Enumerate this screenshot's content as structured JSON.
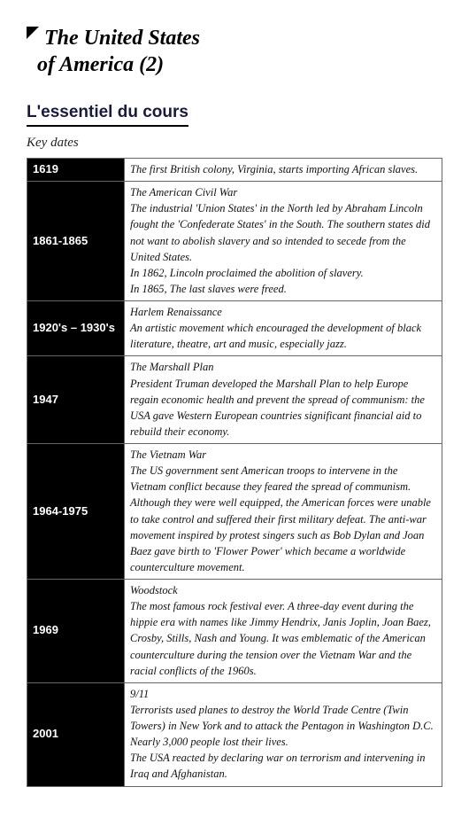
{
  "header": {
    "title_line1": "The United States",
    "title_line2": "of America (2)"
  },
  "section": {
    "title": "L'essentiel du cours",
    "subhead": "Key dates"
  },
  "events": [
    {
      "year": "1619",
      "title": "",
      "body": "The first British colony, Virginia, starts importing African slaves."
    },
    {
      "year": "1861-1865",
      "title": "The American Civil War",
      "body": "The industrial 'Union States' in the North led by Abraham Lincoln fought the 'Confederate States' in the South. The southern states did not want to abolish slavery and so intended to secede from the United States.\nIn 1862, Lincoln proclaimed the abolition of slavery.\nIn 1865, The last slaves were freed."
    },
    {
      "year": "1920's – 1930's",
      "title": "Harlem Renaissance",
      "body": "An artistic movement which encouraged the development of black literature, theatre, art and music, especially jazz."
    },
    {
      "year": "1947",
      "title": "The Marshall Plan",
      "body": "President Truman developed the Marshall Plan to help Europe regain economic health and prevent the spread of communism: the USA gave Western European countries significant financial aid to rebuild their economy."
    },
    {
      "year": "1964-1975",
      "title": "The Vietnam War",
      "body": "The US government sent American troops to intervene in the Vietnam conflict because they feared the spread of communism. Although they were well equipped, the American forces were unable to take control and suffered their first military defeat. The anti-war movement inspired by protest singers such as Bob Dylan and Joan Baez gave birth to 'Flower Power' which became a worldwide counterculture movement."
    },
    {
      "year": "1969",
      "title": "Woodstock",
      "body": "The most famous rock festival ever. A three-day event during the hippie era with names like Jimmy Hendrix, Janis Joplin, Joan Baez, Crosby, Stills, Nash and Young. It was emblematic of the American counterculture during the tension over the Vietnam War and the racial conflicts of the 1960s."
    },
    {
      "year": "2001",
      "title": "9/11",
      "body": "Terrorists used planes to destroy the World Trade Centre (Twin Towers) in New York and to attack the Pentagon in Washington D.C. Nearly 3,000 people lost their lives.\nThe USA reacted by declaring war on terrorism and intervening in Iraq and Afghanistan."
    }
  ],
  "colors": {
    "page_bg": "#ffffff",
    "text": "#000000",
    "year_bg": "#000000",
    "year_fg": "#ffffff",
    "border": "#666666",
    "section_title": "#1a1a3a"
  },
  "typography": {
    "title_fontsize": 24,
    "section_title_fontsize": 19,
    "subhead_fontsize": 15,
    "year_fontsize": 13,
    "desc_fontsize": 12.5
  }
}
